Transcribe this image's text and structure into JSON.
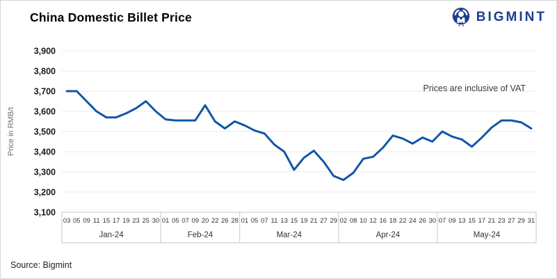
{
  "header": {
    "title": "China Domestic Billet Price",
    "brand": "BIGMINT"
  },
  "footer": {
    "source": "Source: Bigmint"
  },
  "colors": {
    "line": "#1156a5",
    "brand_navy": "#1c3e8e",
    "grid": "#e8e8e8",
    "axis": "#c6c6c6",
    "tick_text": "#333333",
    "annotation_text": "#3a3a3a"
  },
  "chart_data": {
    "type": "line",
    "title": "China Domestic Billet Price",
    "ylabel": "Price in RMB/t",
    "xlabel": "",
    "annotation": "Prices are inclusive of VAT",
    "legend": "none",
    "grid": "horizontal",
    "ylim": [
      3100,
      3900
    ],
    "ytick_step": 100,
    "ytick_labels": [
      "3,100",
      "3,200",
      "3,300",
      "3,400",
      "3,500",
      "3,600",
      "3,700",
      "3,800",
      "3,900"
    ],
    "months": [
      {
        "label": "Jan-24",
        "dates": [
          "03",
          "05",
          "09",
          "11",
          "15",
          "17",
          "19",
          "23",
          "25",
          "30"
        ],
        "values": [
          3700,
          3700,
          3650,
          3600,
          3570,
          3570,
          3590,
          3615,
          3650,
          3600
        ]
      },
      {
        "label": "Feb-24",
        "dates": [
          "01",
          "05",
          "07",
          "09",
          "20",
          "22",
          "26",
          "28"
        ],
        "values": [
          3560,
          3555,
          3555,
          3555,
          3630,
          3550,
          3515,
          3550
        ]
      },
      {
        "label": "Mar-24",
        "dates": [
          "01",
          "05",
          "07",
          "11",
          "13",
          "15",
          "19",
          "21",
          "27",
          "29"
        ],
        "values": [
          3530,
          3505,
          3490,
          3435,
          3400,
          3310,
          3370,
          3405,
          3350,
          3280
        ]
      },
      {
        "label": "Apr-24",
        "dates": [
          "02",
          "08",
          "10",
          "12",
          "16",
          "18",
          "22",
          "24",
          "26",
          "30"
        ],
        "values": [
          3260,
          3295,
          3365,
          3375,
          3420,
          3480,
          3465,
          3440,
          3470,
          3450
        ]
      },
      {
        "label": "May-24",
        "dates": [
          "07",
          "09",
          "13",
          "15",
          "17",
          "21",
          "23",
          "27",
          "29",
          "31"
        ],
        "values": [
          3500,
          3475,
          3460,
          3425,
          3470,
          3520,
          3555,
          3555,
          3545,
          3515
        ]
      }
    ]
  }
}
